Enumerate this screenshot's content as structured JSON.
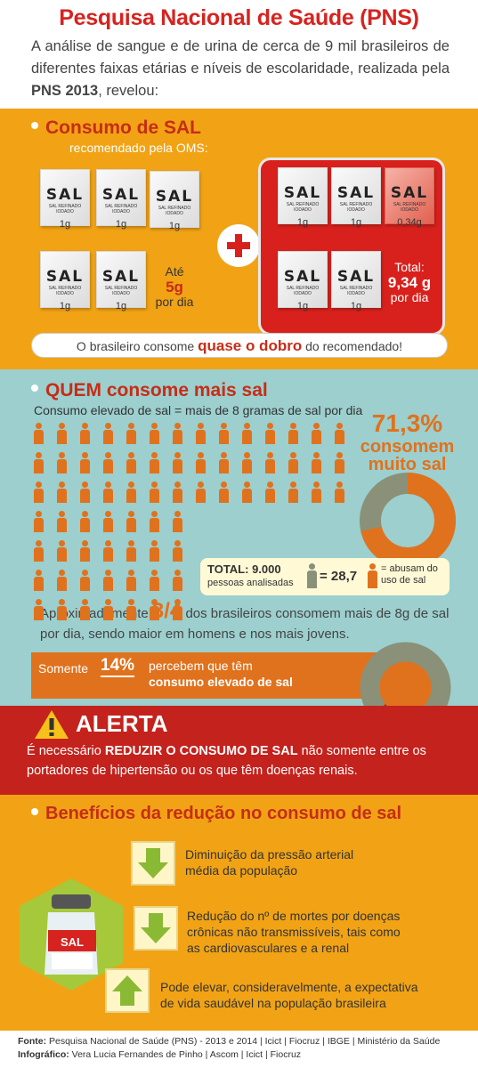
{
  "header": {
    "title": "Pesquisa Nacional de Saúde (PNS)",
    "intro_pre": "A análise de sangue e de urina de cerca de 9 mil brasileiros de diferentes faixas etárias e níveis de escolaridade, realizada pela ",
    "intro_bold": "PNS 2013",
    "intro_post": ", revelou:"
  },
  "consumo": {
    "title": "Consumo de SAL",
    "subtitle": "recomendado pela OMS:",
    "packet_label": "SAL",
    "packet_small": "SAL REFINADO IODADO",
    "packet_g1": "1g",
    "packet_g2": "0,34g",
    "ate": "Até",
    "ate_val": "5g",
    "ate_unit": "por dia",
    "total_label": "Total:",
    "total_val": "9,34 g",
    "total_unit": "por dia",
    "banner_pre": "O brasileiro consome ",
    "banner_bold": "quase o dobro",
    "banner_post": " do recomendado!"
  },
  "quem": {
    "title": "QUEM consome mais sal",
    "subtitle": "Consumo elevado de sal = mais de 8 gramas de sal por dia",
    "pct": "71,3%",
    "pct_text1": "consomem",
    "pct_text2": "muito sal",
    "high_fraction": 0.713,
    "total_label": "TOTAL: 9.000",
    "total_sub": "pessoas analisadas",
    "eq_val": "= 28,7",
    "eq_text1": "= abusam do",
    "eq_text2": "uso de sal",
    "aprox_pre": "Aproximadamente ",
    "aprox_bold": "3/4",
    "aprox_post": " dos brasileiros consomem mais de 8g de sal por dia, sendo maior em homens e nos mais jovens.",
    "somente": "Somente",
    "somente_pct": "14%",
    "somente_t1": "percebem que têm",
    "somente_t2": "consumo elevado de sal",
    "perceive_fraction": 0.14
  },
  "alerta": {
    "title": "ALERTA",
    "text_pre": "É necessário ",
    "text_bold": "REDUZIR O CONSUMO DE SAL",
    "text_post": " não somente entre os portadores de hipertensão ou os que têm doenças renais."
  },
  "beneficios": {
    "title": "Benefícios da redução no consumo de sal",
    "shaker_label": "SAL",
    "items": [
      {
        "line1": "Diminuição da pressão arterial",
        "line2": "média da população",
        "line3": ""
      },
      {
        "line1": "Redução do nº de mortes por doenças",
        "line2": "crônicas não transmissíveis, tais como",
        "line3": "as cardiovasculares e a renal"
      },
      {
        "line1": "Pode elevar, consideravelmente, a expectativa",
        "line2": "de vida saudável na população brasileira",
        "line3": ""
      }
    ]
  },
  "footer": {
    "fonte_label": "Fonte:",
    "fonte": " Pesquisa Nacional de Saúde (PNS) - 2013 e 2014  |  Icict  |  Fiocruz  |  IBGE  |  Ministério da Saúde",
    "info_label": "Infográfico:",
    "info": " Vera Lucia Fernandes de Pinho  |  Ascom  |  Icict  |  Fiocruz"
  },
  "colors": {
    "red": "#d7231f",
    "orange": "#f1a315",
    "person": "#e0721e",
    "teal": "#9ccfce",
    "gray": "#8a9178"
  }
}
